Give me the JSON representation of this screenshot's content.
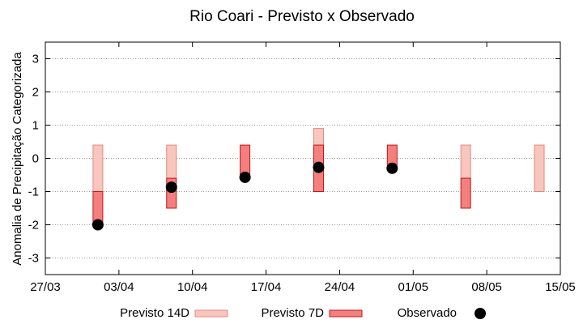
{
  "chart_data": {
    "type": "range-bar",
    "title": "Rio Coari - Previsto x Observado",
    "xlabel": "",
    "ylabel": "Anomalia de Precipitação Categorizada",
    "ylim": [
      -3.5,
      3.5
    ],
    "yticks": [
      3,
      2,
      1,
      0,
      -1,
      -2,
      -3
    ],
    "ytick_labels": [
      "3",
      "2",
      "1",
      "0",
      "-1",
      "-2",
      "-3"
    ],
    "x_domain_days": [
      0,
      49
    ],
    "xticks": [
      {
        "day": 0,
        "label": "27/03"
      },
      {
        "day": 7,
        "label": "03/04"
      },
      {
        "day": 14,
        "label": "10/04"
      },
      {
        "day": 21,
        "label": "17/04"
      },
      {
        "day": 28,
        "label": "24/04"
      },
      {
        "day": 35,
        "label": "01/05"
      },
      {
        "day": 42,
        "label": "08/05"
      },
      {
        "day": 49,
        "label": "15/05"
      }
    ],
    "grid": true,
    "legend_position": "bottom",
    "series": [
      {
        "name": "Previsto 14D",
        "kind": "range",
        "color": "#f9c5bf",
        "stroke": "#e08a80",
        "points": [
          {
            "day": 5,
            "low": -1.0,
            "high": 0.4
          },
          {
            "day": 12,
            "low": -0.6,
            "high": 0.4
          },
          {
            "day": 26,
            "low": -1.0,
            "high": 0.9
          },
          {
            "day": 40,
            "low": -0.6,
            "high": 0.4
          },
          {
            "day": 47,
            "low": -1.0,
            "high": 0.4
          }
        ]
      },
      {
        "name": "Previsto 7D",
        "kind": "range",
        "color": "#f47f7f",
        "stroke": "#c01818",
        "points": [
          {
            "day": 5,
            "low": -2.0,
            "high": -1.0
          },
          {
            "day": 12,
            "low": -1.5,
            "high": -0.6
          },
          {
            "day": 19,
            "low": -0.6,
            "high": 0.4
          },
          {
            "day": 26,
            "low": -1.0,
            "high": 0.4
          },
          {
            "day": 33,
            "low": -0.3,
            "high": 0.4
          },
          {
            "day": 40,
            "low": -1.5,
            "high": -0.6
          }
        ]
      },
      {
        "name": "Observado",
        "kind": "point",
        "color": "#000000",
        "points": [
          {
            "day": 5,
            "value": -2.0
          },
          {
            "day": 12,
            "value": -0.87
          },
          {
            "day": 19,
            "value": -0.57
          },
          {
            "day": 26,
            "value": -0.27
          },
          {
            "day": 33,
            "value": -0.3
          }
        ]
      }
    ]
  }
}
